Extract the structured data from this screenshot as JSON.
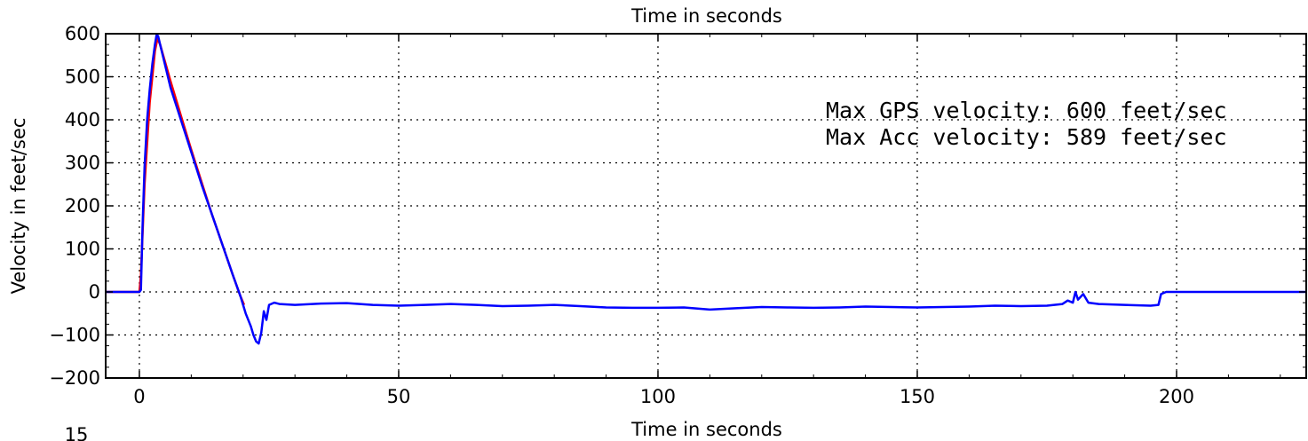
{
  "chart_data": {
    "type": "line",
    "title": "Time in seconds",
    "xlabel": "Time in seconds",
    "ylabel": "Velocity in feet/sec",
    "xlim": [
      -6.5,
      225
    ],
    "ylim": [
      -200,
      600
    ],
    "xticks": [
      0,
      50,
      100,
      150,
      200
    ],
    "yticks": [
      -200,
      -100,
      0,
      100,
      200,
      300,
      400,
      500,
      600
    ],
    "xtick_labels": [
      "0",
      "50",
      "100",
      "150",
      "200"
    ],
    "ytick_labels": [
      "−200",
      "−100",
      "0",
      "100",
      "200",
      "300",
      "400",
      "500",
      "600"
    ],
    "grid": true,
    "series": [
      {
        "color": "#ff0000",
        "x": [
          -6.5,
          0,
          0.3,
          1,
          2,
          3,
          3.5,
          4,
          6,
          8,
          10,
          12,
          14,
          16,
          18,
          19.5,
          20.2
        ],
        "y": [
          0,
          0,
          40,
          250,
          440,
          560,
          589,
          575,
          490,
          410,
          330,
          255,
          180,
          110,
          40,
          -10,
          -30
        ]
      },
      {
        "color": "#0000ff",
        "x": [
          -6.5,
          0,
          0.3,
          0.6,
          1,
          1.5,
          2,
          2.5,
          3,
          3.3,
          3.6,
          4,
          5,
          6,
          8,
          10,
          12,
          14,
          16,
          18,
          19.5,
          20.5,
          21.5,
          22,
          22.5,
          23,
          23.5,
          24,
          24.5,
          25,
          26,
          27,
          30,
          35,
          40,
          45,
          50,
          55,
          60,
          65,
          70,
          75,
          80,
          85,
          90,
          95,
          100,
          105,
          110,
          115,
          120,
          125,
          130,
          135,
          140,
          145,
          150,
          155,
          160,
          165,
          170,
          175,
          178,
          179,
          180,
          180.5,
          181,
          182,
          183,
          185,
          190,
          195,
          196.5,
          197,
          198,
          200,
          210,
          225
        ],
        "y": [
          0,
          0,
          5,
          150,
          290,
          400,
          470,
          530,
          575,
          596,
          595,
          575,
          525,
          475,
          400,
          325,
          250,
          180,
          110,
          40,
          -10,
          -50,
          -80,
          -100,
          -115,
          -120,
          -95,
          -45,
          -65,
          -30,
          -25,
          -28,
          -30,
          -27,
          -26,
          -30,
          -32,
          -30,
          -28,
          -30,
          -33,
          -32,
          -30,
          -33,
          -36,
          -37,
          -37,
          -36,
          -41,
          -38,
          -35,
          -36,
          -37,
          -36,
          -34,
          -35,
          -36,
          -35,
          -34,
          -32,
          -33,
          -32,
          -28,
          -20,
          -25,
          0,
          -18,
          -5,
          -25,
          -28,
          -30,
          -32,
          -30,
          -5,
          0,
          0,
          0,
          0
        ]
      }
    ],
    "annotations": [
      "Max GPS velocity: 600 feet/sec",
      "Max Acc velocity: 589 feet/sec"
    ],
    "partial_next_tick": "15"
  }
}
